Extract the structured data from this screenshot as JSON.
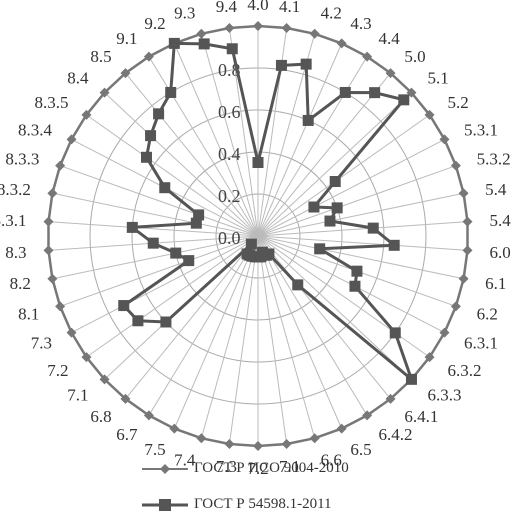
{
  "chart_data": {
    "type": "radar",
    "categories": [
      "4.0",
      "4.1",
      "4.2",
      "4.3",
      "4.4",
      "5.0",
      "5.1",
      "5.2",
      "5.3.1",
      "5.3.2",
      "5.4",
      "5.4",
      "6.0",
      "6.1",
      "6.2",
      "6.3.1",
      "6.3.2",
      "6.3.3",
      "6.4.1",
      "6.4.2",
      "6.5",
      "6.6",
      "7.1",
      "7.2",
      "7.3",
      "7.4",
      "7.5",
      "6.7",
      "6.8",
      "7.1",
      "7.2",
      "7.3",
      "8.1",
      "8.2",
      "8.3",
      "8.3.1",
      "8.3.2",
      "8.3.3",
      "8.3.4",
      "8.3.5",
      "8.4",
      "8.5",
      "9.1",
      "9.2",
      "9.3",
      "9.4"
    ],
    "rlim": [
      0,
      1.0
    ],
    "ticks": [
      "0.0",
      "0.2",
      "0.4",
      "0.6",
      "0.8"
    ],
    "tick_values": [
      0,
      0.2,
      0.4,
      0.6,
      0.8
    ],
    "series": [
      {
        "name": "ГОСТ Р ИСО 9004-2010",
        "marker": "diamond",
        "color": "#777777",
        "values": [
          1,
          1,
          1,
          1,
          1,
          1,
          1,
          1,
          1,
          1,
          1,
          1,
          1,
          1,
          1,
          1,
          1,
          1,
          1,
          1,
          1,
          1,
          1,
          1,
          1,
          1,
          1,
          1,
          1,
          1,
          1,
          1,
          1,
          1,
          1,
          1,
          1,
          1,
          1,
          1,
          1,
          1,
          1,
          1,
          1,
          1
        ]
      },
      {
        "name": "ГОСТ Р 54598.1-2011",
        "marker": "square",
        "color": "#555555",
        "values": [
          0.35,
          0.82,
          0.85,
          0.6,
          0.8,
          0.88,
          0.95,
          0.45,
          0.3,
          0.4,
          0.35,
          0.55,
          0.65,
          0.3,
          0.5,
          0.52,
          0.8,
          1.0,
          0.3,
          0.1,
          0.1,
          0.08,
          0.1,
          0.1,
          0.1,
          0.1,
          0.1,
          0.1,
          0.05,
          0.6,
          0.7,
          0.72,
          0.35,
          0.4,
          0.5,
          0.6,
          0.3,
          0.3,
          0.5,
          0.65,
          0.7,
          0.75,
          0.8,
          1.0,
          0.95,
          0.9
        ]
      }
    ],
    "legend_position": "bottom",
    "grid": true
  }
}
